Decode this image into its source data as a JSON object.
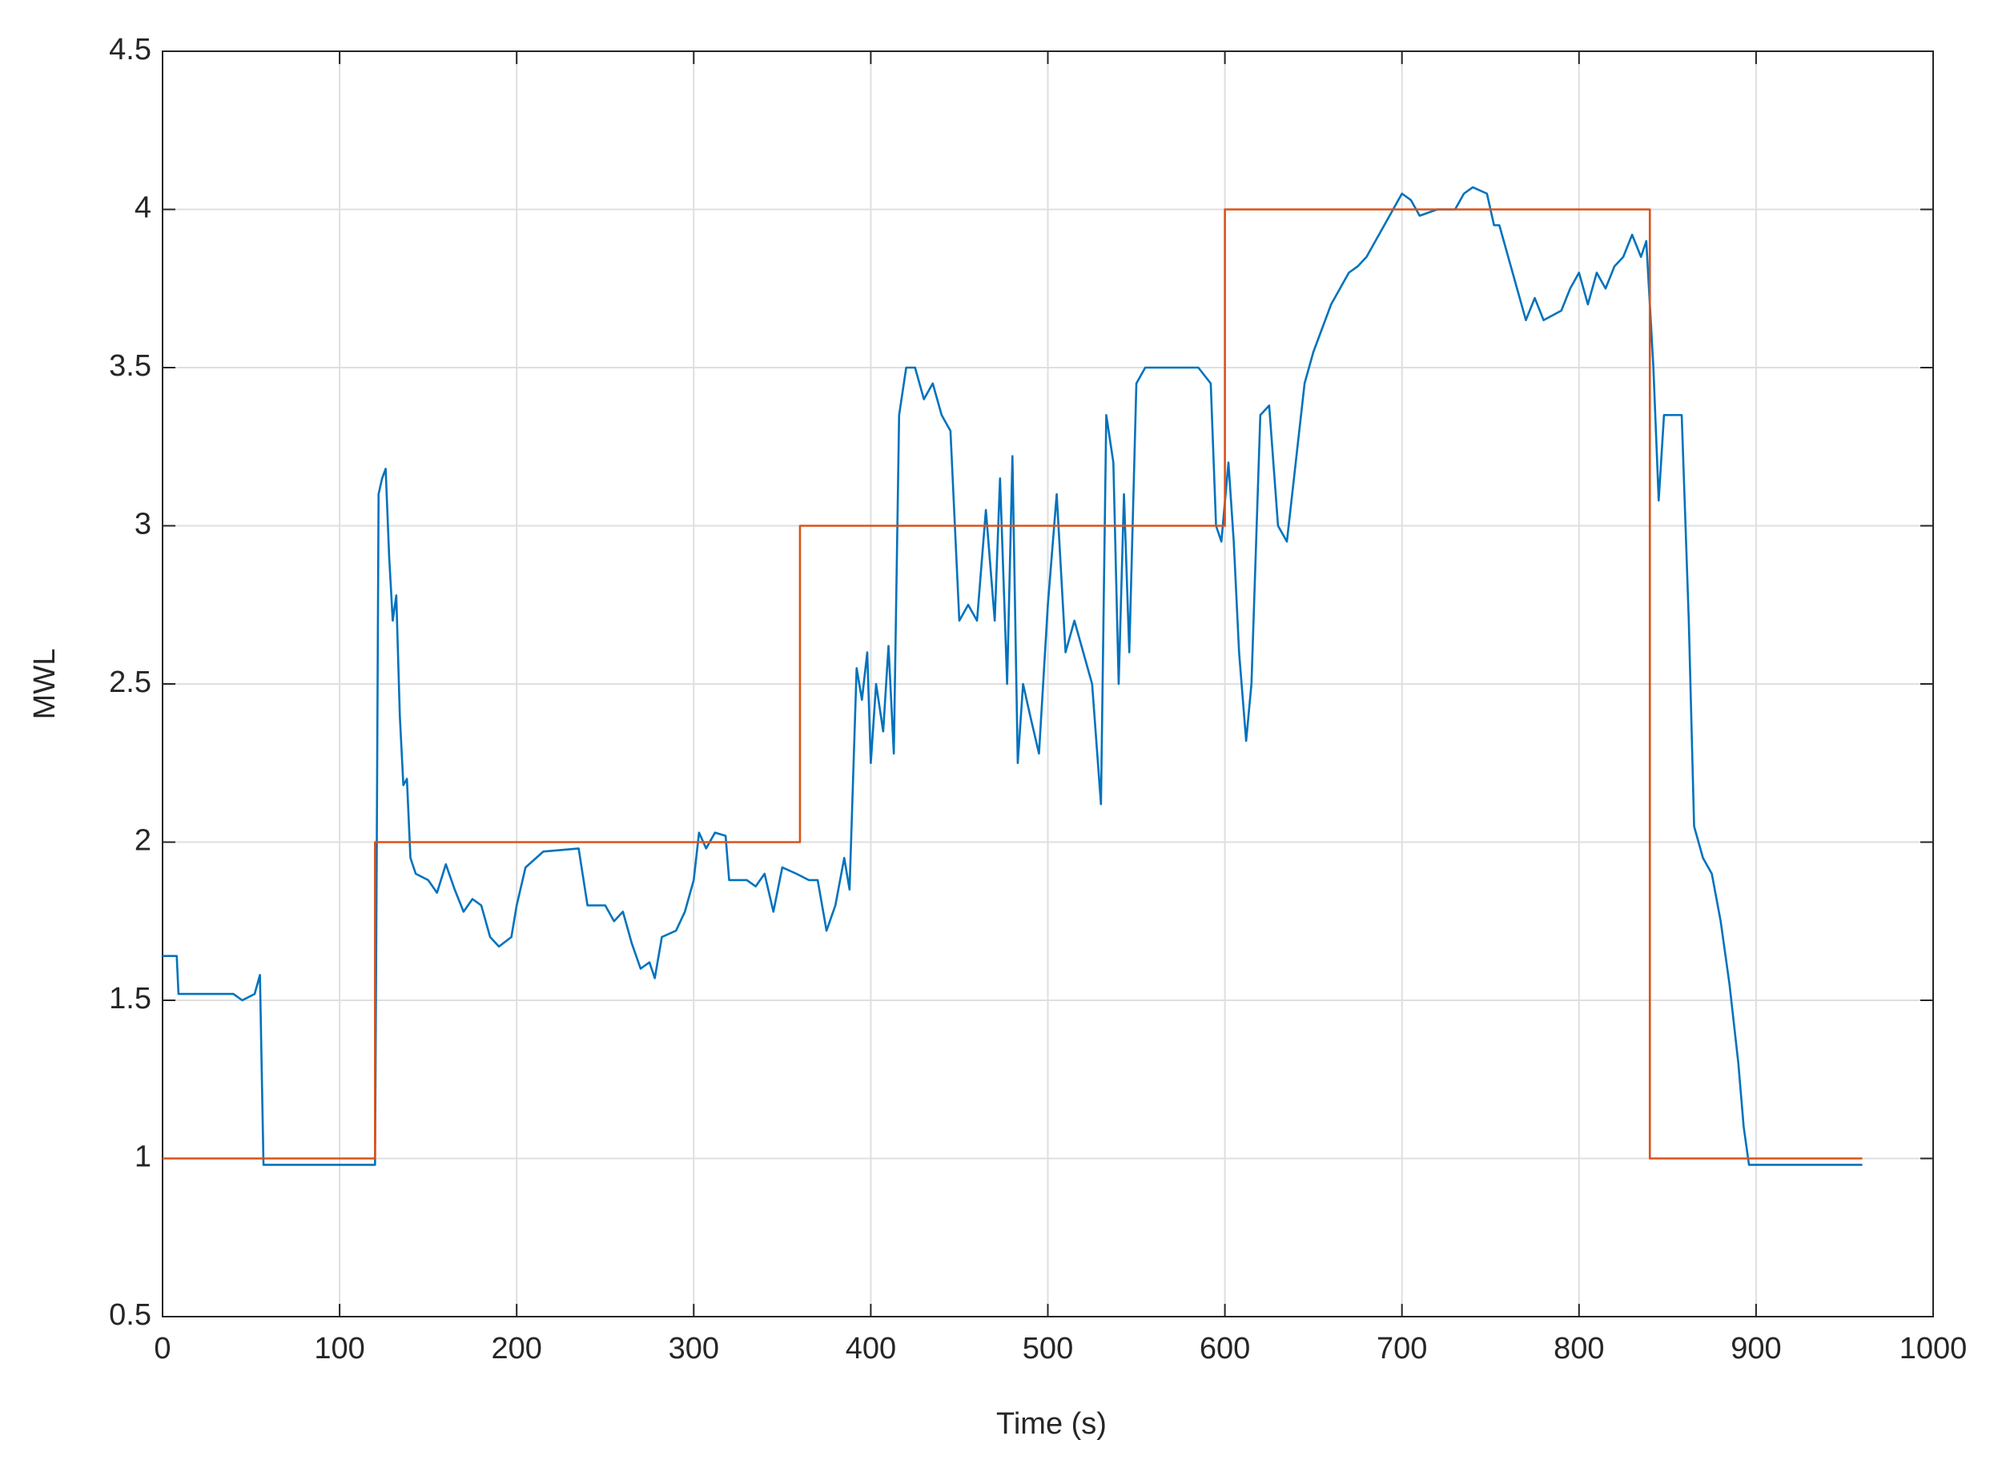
{
  "chart_data": {
    "type": "line",
    "xlabel": "Time (s)",
    "ylabel": "MWL",
    "xlim": [
      0,
      1000
    ],
    "xticks": [
      0,
      100,
      200,
      300,
      400,
      500,
      600,
      700,
      800,
      900,
      1000
    ],
    "ylim": [
      0.5,
      4.5
    ],
    "yticks": [
      0.5,
      1,
      1.5,
      2,
      2.5,
      3,
      3.5,
      4,
      4.5
    ],
    "grid": true,
    "series": [
      {
        "color": "#0072bd",
        "x": [
          0,
          8,
          9,
          40,
          45,
          52,
          55,
          57,
          120,
          121,
          122,
          124,
          126,
          128,
          130,
          132,
          134,
          136,
          138,
          140,
          143,
          150,
          155,
          160,
          165,
          170,
          175,
          180,
          185,
          190,
          197,
          200,
          205,
          215,
          235,
          240,
          250,
          255,
          260,
          265,
          270,
          275,
          278,
          282,
          290,
          295,
          300,
          303,
          307,
          312,
          318,
          320,
          330,
          335,
          340,
          345,
          350,
          358,
          365,
          370,
          375,
          380,
          385,
          388,
          392,
          395,
          398,
          400,
          403,
          407,
          410,
          413,
          416,
          420,
          425,
          430,
          435,
          440,
          445,
          450,
          455,
          460,
          465,
          470,
          473,
          477,
          480,
          483,
          486,
          490,
          495,
          500,
          505,
          510,
          515,
          520,
          525,
          530,
          533,
          537,
          540,
          543,
          546,
          550,
          555,
          565,
          575,
          585,
          592,
          595,
          598,
          602,
          605,
          608,
          612,
          615,
          620,
          625,
          630,
          635,
          640,
          645,
          650,
          660,
          665,
          670,
          675,
          680,
          690,
          700,
          705,
          710,
          720,
          730,
          735,
          740,
          748,
          752,
          755,
          760,
          765,
          770,
          775,
          780,
          790,
          795,
          800,
          805,
          810,
          815,
          820,
          825,
          830,
          835,
          838,
          842,
          845,
          848,
          858,
          862,
          865,
          870,
          875,
          880,
          885,
          890,
          893,
          896,
          960
        ],
        "values": [
          1.64,
          1.64,
          1.52,
          1.52,
          1.5,
          1.52,
          1.58,
          0.98,
          0.98,
          2.0,
          3.1,
          3.15,
          3.18,
          2.9,
          2.7,
          2.78,
          2.4,
          2.18,
          2.2,
          1.95,
          1.9,
          1.88,
          1.84,
          1.93,
          1.85,
          1.78,
          1.82,
          1.8,
          1.7,
          1.67,
          1.7,
          1.8,
          1.92,
          1.97,
          1.98,
          1.8,
          1.8,
          1.75,
          1.78,
          1.68,
          1.6,
          1.62,
          1.57,
          1.7,
          1.72,
          1.78,
          1.88,
          2.03,
          1.98,
          2.03,
          2.02,
          1.88,
          1.88,
          1.86,
          1.9,
          1.78,
          1.92,
          1.9,
          1.88,
          1.88,
          1.72,
          1.8,
          1.95,
          1.85,
          2.55,
          2.45,
          2.6,
          2.25,
          2.5,
          2.35,
          2.62,
          2.28,
          3.35,
          3.5,
          3.5,
          3.4,
          3.45,
          3.35,
          3.3,
          2.7,
          2.75,
          2.7,
          3.05,
          2.7,
          3.15,
          2.5,
          3.22,
          2.25,
          2.5,
          2.4,
          2.28,
          2.75,
          3.1,
          2.6,
          2.7,
          2.6,
          2.5,
          2.12,
          3.35,
          3.2,
          2.5,
          3.1,
          2.6,
          3.45,
          3.5,
          3.5,
          3.5,
          3.5,
          3.45,
          3.0,
          2.95,
          3.2,
          2.95,
          2.6,
          2.32,
          2.5,
          3.35,
          3.38,
          3.0,
          2.95,
          3.2,
          3.45,
          3.55,
          3.7,
          3.75,
          3.8,
          3.82,
          3.85,
          3.95,
          4.05,
          4.03,
          3.98,
          4.0,
          4.0,
          4.05,
          4.07,
          4.05,
          3.95,
          3.95,
          3.85,
          3.75,
          3.65,
          3.72,
          3.65,
          3.68,
          3.75,
          3.8,
          3.7,
          3.8,
          3.75,
          3.82,
          3.85,
          3.92,
          3.85,
          3.9,
          3.5,
          3.08,
          3.35,
          3.35,
          2.7,
          2.05,
          1.95,
          1.9,
          1.75,
          1.55,
          1.3,
          1.1,
          0.98,
          0.98
        ]
      },
      {
        "color": "#d95319",
        "x": [
          0,
          120,
          120,
          360,
          360,
          600,
          600,
          840,
          840,
          960
        ],
        "values": [
          1,
          1,
          2,
          2,
          3,
          3,
          4,
          4,
          1,
          1
        ]
      }
    ]
  }
}
